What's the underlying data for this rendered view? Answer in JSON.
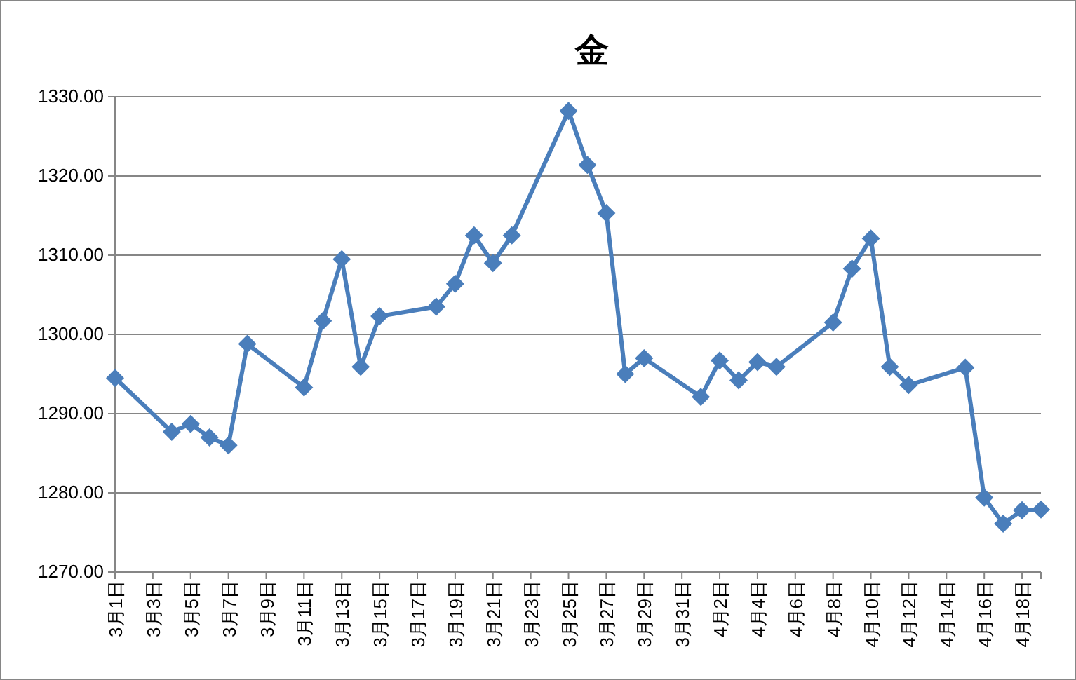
{
  "chart_data": {
    "type": "line",
    "title": "金",
    "x": [
      "--03-01",
      "--03-04",
      "--03-05",
      "--03-06",
      "--03-07",
      "--03-08",
      "--03-11",
      "--03-12",
      "--03-13",
      "--03-14",
      "--03-15",
      "--03-18",
      "--03-19",
      "--03-20",
      "--03-21",
      "--03-22",
      "--03-25",
      "--03-26",
      "--03-27",
      "--03-28",
      "--03-29",
      "--04-01",
      "--04-02",
      "--04-03",
      "--04-04",
      "--04-05",
      "--04-08",
      "--04-09",
      "--04-10",
      "--04-11",
      "--04-12",
      "--04-15",
      "--04-16",
      "--04-17",
      "--04-18",
      "--04-19"
    ],
    "series": [
      {
        "color": "#4a7ebb",
        "values": [
          1294.5,
          1287.7,
          1288.7,
          1287.0,
          1286.0,
          1298.8,
          1293.3,
          1301.7,
          1309.5,
          1295.9,
          1302.3,
          1303.5,
          1306.4,
          1312.5,
          1309.0,
          1312.5,
          1328.2,
          1321.4,
          1315.3,
          1295.0,
          1297.0,
          1292.1,
          1296.7,
          1294.2,
          1296.5,
          1295.9,
          1301.5,
          1308.3,
          1312.1,
          1295.9,
          1293.6,
          1295.8,
          1279.4,
          1276.1,
          1277.8,
          1277.9
        ]
      }
    ],
    "xlim": [
      "--03-01",
      "--04-19"
    ],
    "xticks": [
      {
        "value": "--03-01",
        "label": "3月1日"
      },
      {
        "value": "--03-03",
        "label": "3月3日"
      },
      {
        "value": "--03-05",
        "label": "3月5日"
      },
      {
        "value": "--03-07",
        "label": "3月7日"
      },
      {
        "value": "--03-09",
        "label": "3月9日"
      },
      {
        "value": "--03-11",
        "label": "3月11日"
      },
      {
        "value": "--03-13",
        "label": "3月13日"
      },
      {
        "value": "--03-15",
        "label": "3月15日"
      },
      {
        "value": "--03-17",
        "label": "3月17日"
      },
      {
        "value": "--03-19",
        "label": "3月19日"
      },
      {
        "value": "--03-21",
        "label": "3月21日"
      },
      {
        "value": "--03-23",
        "label": "3月23日"
      },
      {
        "value": "--03-25",
        "label": "3月25日"
      },
      {
        "value": "--03-27",
        "label": "3月27日"
      },
      {
        "value": "--03-29",
        "label": "3月29日"
      },
      {
        "value": "--03-31",
        "label": "3月31日"
      },
      {
        "value": "--04-02",
        "label": "4月2日"
      },
      {
        "value": "--04-04",
        "label": "4月4日"
      },
      {
        "value": "--04-06",
        "label": "4月6日"
      },
      {
        "value": "--04-08",
        "label": "4月8日"
      },
      {
        "value": "--04-10",
        "label": "4月10日"
      },
      {
        "value": "--04-12",
        "label": "4月12日"
      },
      {
        "value": "--04-14",
        "label": "4月14日"
      },
      {
        "value": "--04-16",
        "label": "4月16日"
      },
      {
        "value": "--04-18",
        "label": "4月18日"
      }
    ],
    "ylim": [
      1270,
      1330
    ],
    "yticks": [
      {
        "value": 1270,
        "label": "1270.00"
      },
      {
        "value": 1280,
        "label": "1280.00"
      },
      {
        "value": 1290,
        "label": "1290.00"
      },
      {
        "value": 1300,
        "label": "1300.00"
      },
      {
        "value": 1310,
        "label": "1310.00"
      },
      {
        "value": 1320,
        "label": "1320.00"
      },
      {
        "value": 1330,
        "label": "1330.00"
      }
    ],
    "grid": "y",
    "marker": "diamond",
    "line_style": "solid"
  }
}
